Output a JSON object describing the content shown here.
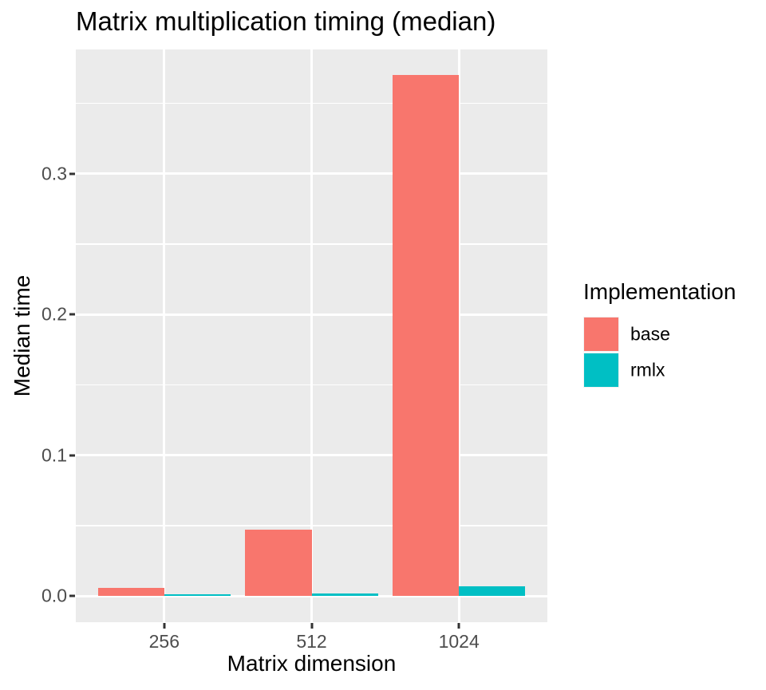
{
  "chart_data": {
    "type": "bar",
    "title": "Matrix multiplication timing (median)",
    "xlabel": "Matrix dimension",
    "ylabel": "Median time",
    "categories": [
      "256",
      "512",
      "1024"
    ],
    "series": [
      {
        "name": "base",
        "color": "#F8766D",
        "values": [
          0.006,
          0.047,
          0.37
        ]
      },
      {
        "name": "rmlx",
        "color": "#00BFC4",
        "values": [
          0.0013,
          0.0017,
          0.007
        ]
      }
    ],
    "y_ticks": [
      0.0,
      0.1,
      0.2,
      0.3
    ],
    "y_tick_labels": [
      "0.0",
      "0.1",
      "0.2",
      "0.3"
    ],
    "y_minor_ticks": [
      0.05,
      0.15,
      0.25,
      0.35
    ],
    "ylim": [
      -0.0185,
      0.3883
    ],
    "grid": true,
    "legend": {
      "title": "Implementation",
      "position": "right",
      "items": [
        "base",
        "rmlx"
      ]
    }
  },
  "style": {
    "panel_bg": "#EBEBEB",
    "grid_color": "#FFFFFF",
    "axis_text_color": "#4D4D4D",
    "tick_mark_color": "#333333",
    "legend_key_bg": "#F2F2F2",
    "series_colors": {
      "base": "#F8766D",
      "rmlx": "#00BFC4"
    },
    "background": "#FFFFFF"
  }
}
